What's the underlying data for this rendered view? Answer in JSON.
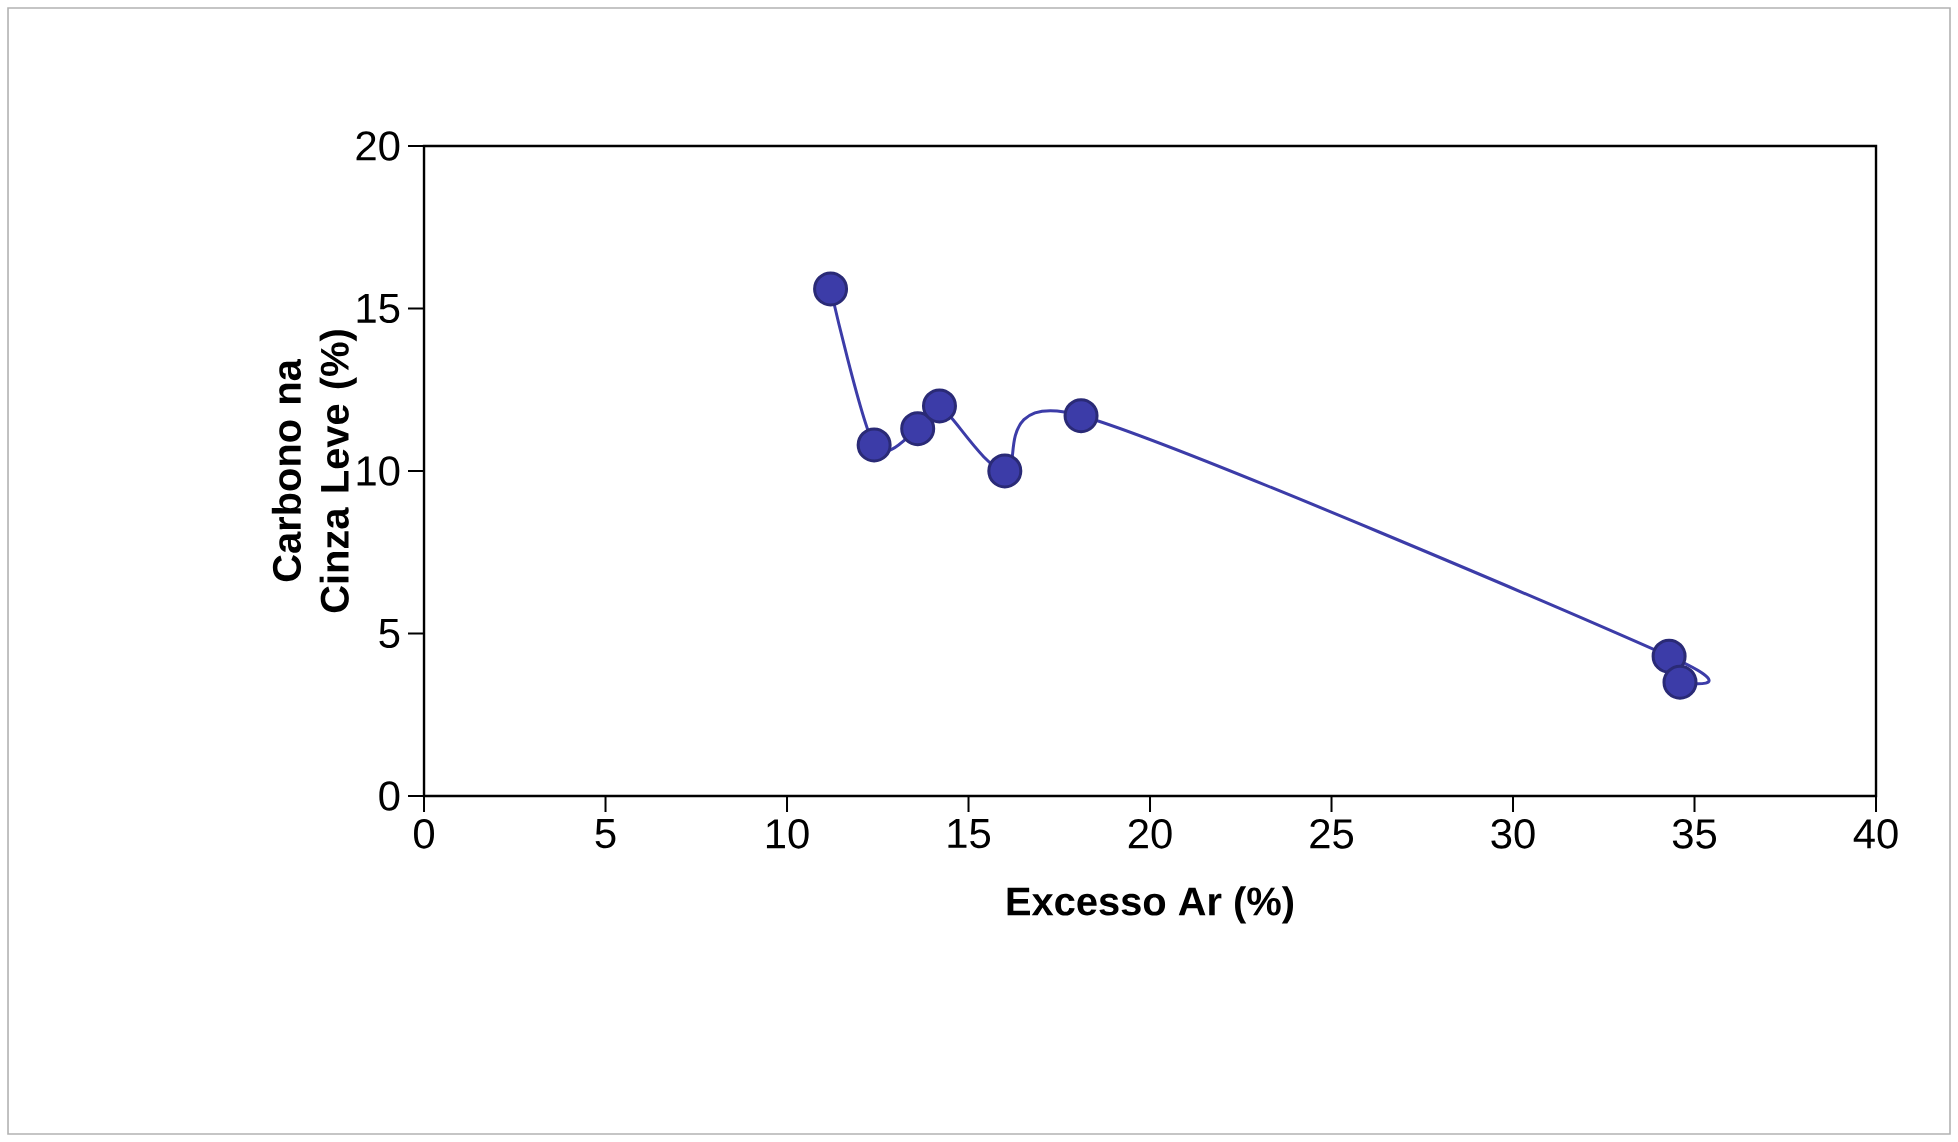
{
  "chart_data": {
    "type": "line",
    "xlabel": "Excesso Ar (%)",
    "ylabel": "Carbono na Cinza Leve (%)",
    "x": [
      11.2,
      12.4,
      13.6,
      14.2,
      16.0,
      18.1,
      34.3,
      34.6
    ],
    "series": [
      {
        "color": "#3c3ca8",
        "values": [
          15.6,
          10.8,
          11.3,
          12.0,
          10.0,
          11.7,
          4.3,
          3.5
        ]
      }
    ],
    "xlim": [
      0,
      40
    ],
    "ylim": [
      0,
      20
    ],
    "xticks": [
      0,
      5,
      10,
      15,
      20,
      25,
      30,
      35,
      40
    ],
    "yticks": [
      0,
      5,
      10,
      15,
      20
    ],
    "marker": "circle"
  }
}
